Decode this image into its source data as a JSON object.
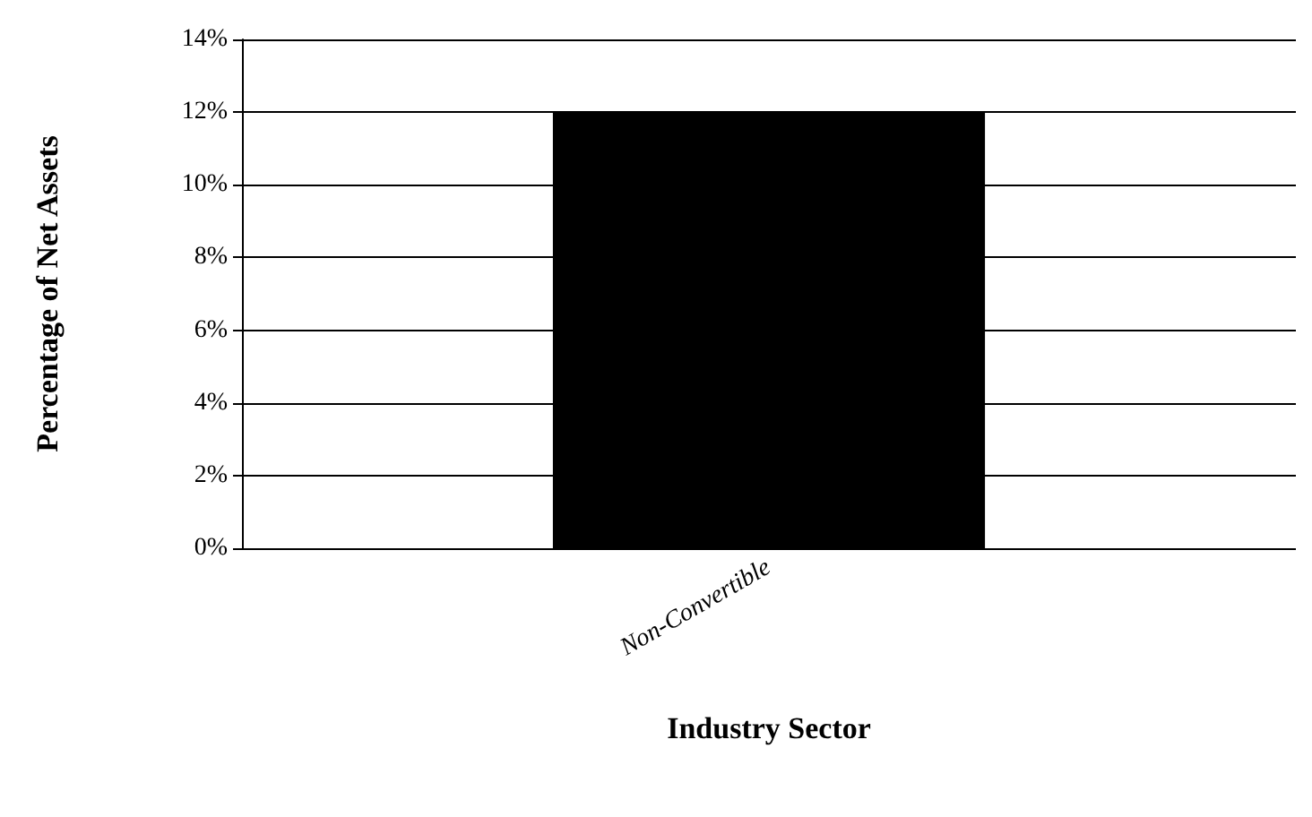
{
  "chart_data": {
    "type": "bar",
    "xlabel": "Industry Sector",
    "ylabel": "Percentage of Net Assets",
    "categories": [
      "Non-Convertible"
    ],
    "values": [
      12
    ],
    "color": "#000000",
    "ylim": [
      0,
      14
    ],
    "yticks": [
      {
        "value": 0,
        "label": "0%"
      },
      {
        "value": 2,
        "label": "2%"
      },
      {
        "value": 4,
        "label": "4%"
      },
      {
        "value": 6,
        "label": "6%"
      },
      {
        "value": 8,
        "label": "8%"
      },
      {
        "value": 10,
        "label": "10%"
      },
      {
        "value": 12,
        "label": "12%"
      },
      {
        "value": 14,
        "label": "14%"
      }
    ],
    "grid": true
  }
}
